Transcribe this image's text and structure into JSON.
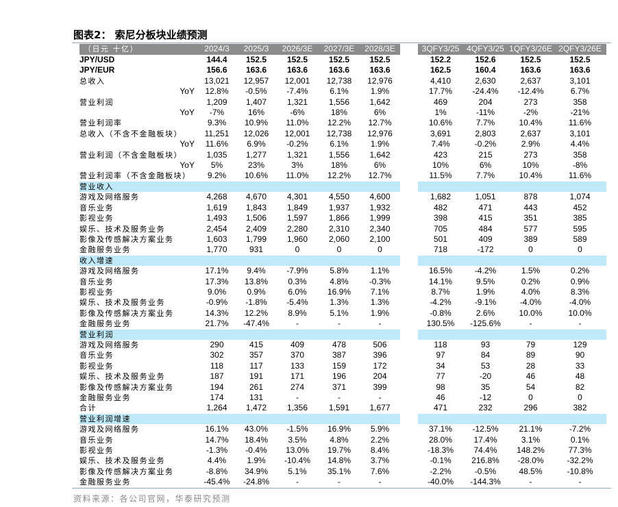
{
  "title": "图表2： 索尼分板块业绩预测",
  "source": "资料来源：各公司官网，华泰研究预测",
  "colors": {
    "header_bg": "#8c8c8c",
    "section_bg": "#bfe9f8",
    "rule": "#8ea3bf"
  },
  "table": {
    "unit_label": "（日元 十亿）",
    "columns": [
      "2024/3",
      "2025/3",
      "2026/3E",
      "2027/3E",
      "2028/3E",
      "3QFY3/25",
      "4QFY3/25",
      "1QFY3/26E",
      "2QFY3/26E"
    ],
    "rows": [
      {
        "type": "bold",
        "label": "JPY/USD",
        "values": [
          "144.4",
          "152.5",
          "152.5",
          "152.5",
          "152.5",
          "152.2",
          "152.6",
          "152.5",
          "152.5"
        ]
      },
      {
        "type": "bold",
        "label": "JPY/EUR",
        "values": [
          "156.6",
          "163.6",
          "163.6",
          "163.6",
          "163.6",
          "162.5",
          "160.4",
          "163.6",
          "163.6"
        ]
      },
      {
        "type": "data",
        "label": "总收入",
        "values": [
          "13,021",
          "12,957",
          "12,001",
          "12,738",
          "12,976",
          "4,410",
          "2,630",
          "2,637",
          "3,101"
        ]
      },
      {
        "type": "yoy",
        "label": "YoY",
        "values": [
          "12.8%",
          "-0.5%",
          "-7.4%",
          "6.1%",
          "1.9%",
          "17.7%",
          "-24.4%",
          "-12.4%",
          "6.7%"
        ]
      },
      {
        "type": "data",
        "label": "营业利润",
        "values": [
          "1,209",
          "1,407",
          "1,321",
          "1,556",
          "1,642",
          "469",
          "204",
          "273",
          "358"
        ]
      },
      {
        "type": "yoy",
        "label": "YoY",
        "values": [
          "-7%",
          "16%",
          "-6%",
          "18%",
          "6%",
          "1%",
          "-11%",
          "-2%",
          "-21%"
        ]
      },
      {
        "type": "data",
        "label": "营业利润率",
        "values": [
          "9.3%",
          "10.9%",
          "11.0%",
          "12.2%",
          "12.7%",
          "10.6%",
          "7.7%",
          "10.4%",
          "11.6%"
        ]
      },
      {
        "type": "data",
        "label": "总收入（不含不金融板块）",
        "values": [
          "11,251",
          "12,026",
          "12,001",
          "12,738",
          "12,976",
          "3,691",
          "2,803",
          "2,637",
          "3,101"
        ]
      },
      {
        "type": "yoy",
        "label": "YoY",
        "values": [
          "11.6%",
          "6.9%",
          "-0.2%",
          "6.1%",
          "1.9%",
          "7.4%",
          "-0.2%",
          "2.9%",
          "4.4%"
        ]
      },
      {
        "type": "data",
        "label": "营业利润（不含金融板块）",
        "values": [
          "1,035",
          "1,277",
          "1,321",
          "1,556",
          "1,642",
          "423",
          "215",
          "273",
          "358"
        ]
      },
      {
        "type": "yoy",
        "label": "YoY",
        "values": [
          "5%",
          "23%",
          "3%",
          "18%",
          "6%",
          "10%",
          "6%",
          "10%",
          "-8%"
        ]
      },
      {
        "type": "data",
        "label": "营业利润率（不含金融板块）",
        "values": [
          "9.2%",
          "10.6%",
          "11.0%",
          "12.2%",
          "12.7%",
          "11.5%",
          "7.7%",
          "10.4%",
          "11.6%"
        ]
      },
      {
        "type": "sec",
        "label": "营业收入",
        "values": []
      },
      {
        "type": "data",
        "label": "游戏及网络服务",
        "values": [
          "4,268",
          "4,670",
          "4,301",
          "4,550",
          "4,600",
          "1,682",
          "1,051",
          "878",
          "1,074"
        ]
      },
      {
        "type": "data",
        "label": "音乐业务",
        "values": [
          "1,619",
          "1,843",
          "1,849",
          "1,937",
          "1,932",
          "482",
          "471",
          "443",
          "452"
        ]
      },
      {
        "type": "data",
        "label": "影视业务",
        "values": [
          "1,493",
          "1,506",
          "1,597",
          "1,866",
          "1,999",
          "398",
          "415",
          "351",
          "385"
        ]
      },
      {
        "type": "data",
        "label": "娱乐、技术及服务业务",
        "values": [
          "2,454",
          "2,409",
          "2,280",
          "2,310",
          "2,340",
          "705",
          "484",
          "577",
          "595"
        ]
      },
      {
        "type": "data",
        "label": "影像及传感解决方案业务",
        "values": [
          "1,603",
          "1,799",
          "1,960",
          "2,060",
          "2,100",
          "501",
          "409",
          "389",
          "589"
        ]
      },
      {
        "type": "data",
        "label": "金融服务业务",
        "values": [
          "1,770",
          "931",
          "0",
          "0",
          "0",
          "718",
          "-172",
          "0",
          "0"
        ]
      },
      {
        "type": "sec",
        "label": "收入增速",
        "values": []
      },
      {
        "type": "data",
        "label": "游戏及网络服务",
        "values": [
          "17.1%",
          "9.4%",
          "-7.9%",
          "5.8%",
          "1.1%",
          "16.5%",
          "-4.2%",
          "1.5%",
          "0.2%"
        ]
      },
      {
        "type": "data",
        "label": "音乐业务",
        "values": [
          "17.3%",
          "13.8%",
          "0.3%",
          "4.8%",
          "-0.3%",
          "14.1%",
          "9.5%",
          "0.2%",
          "0.9%"
        ]
      },
      {
        "type": "data",
        "label": "影视业务",
        "values": [
          "9.0%",
          "0.9%",
          "6.0%",
          "16.9%",
          "7.1%",
          "8.7%",
          "1.9%",
          "4.0%",
          "8.3%"
        ]
      },
      {
        "type": "data",
        "label": "娱乐、技术及服务业务",
        "values": [
          "-0.9%",
          "-1.8%",
          "-5.4%",
          "1.3%",
          "1.3%",
          "-4.2%",
          "-9.1%",
          "-4.0%",
          "-4.0%"
        ]
      },
      {
        "type": "data",
        "label": "影像及传感解决方案业务",
        "values": [
          "14.3%",
          "12.2%",
          "8.9%",
          "5.1%",
          "1.9%",
          "-0.8%",
          "2.6%",
          "10.0%",
          "10.0%"
        ]
      },
      {
        "type": "data",
        "label": "金融服务业务",
        "values": [
          "21.7%",
          "-47.4%",
          "-",
          "-",
          "-",
          "130.5%",
          "-125.6%",
          "-",
          "-"
        ]
      },
      {
        "type": "sec",
        "label": "营业利润",
        "values": []
      },
      {
        "type": "data",
        "label": "游戏及网络服务",
        "values": [
          "290",
          "415",
          "409",
          "478",
          "506",
          "118",
          "93",
          "79",
          "129"
        ]
      },
      {
        "type": "data",
        "label": "音乐业务",
        "values": [
          "302",
          "357",
          "370",
          "387",
          "396",
          "97",
          "84",
          "89",
          "90"
        ]
      },
      {
        "type": "data",
        "label": "影视业务",
        "values": [
          "118",
          "117",
          "133",
          "159",
          "172",
          "34",
          "53",
          "28",
          "33"
        ]
      },
      {
        "type": "data",
        "label": "娱乐、技术及服务业务",
        "values": [
          "187",
          "191",
          "171",
          "196",
          "204",
          "77",
          "-20",
          "46",
          "48"
        ]
      },
      {
        "type": "data",
        "label": "影像及传感解决方案业务",
        "values": [
          "194",
          "261",
          "274",
          "371",
          "399",
          "98",
          "35",
          "54",
          "82"
        ]
      },
      {
        "type": "data",
        "label": "金融服务业务",
        "values": [
          "174",
          "131",
          "-",
          "-",
          "-",
          "46",
          "-12",
          "0",
          "0"
        ]
      },
      {
        "type": "data",
        "label": "合计",
        "values": [
          "1,264",
          "1,472",
          "1,356",
          "1,591",
          "1,677",
          "471",
          "232",
          "296",
          "382"
        ]
      },
      {
        "type": "sec",
        "label": "营业利润增速",
        "values": []
      },
      {
        "type": "data",
        "label": "游戏及网络服务",
        "values": [
          "16.1%",
          "43.0%",
          "-1.5%",
          "16.9%",
          "5.9%",
          "37.1%",
          "-12.5%",
          "21.1%",
          "-7.2%"
        ]
      },
      {
        "type": "data",
        "label": "音乐业务",
        "values": [
          "14.7%",
          "18.4%",
          "3.5%",
          "4.8%",
          "2.2%",
          "28.0%",
          "17.4%",
          "3.1%",
          "0.1%"
        ]
      },
      {
        "type": "data",
        "label": "影视业务",
        "values": [
          "-1.3%",
          "-0.4%",
          "13.0%",
          "19.7%",
          "8.4%",
          "-18.3%",
          "74.4%",
          "148.2%",
          "77.3%"
        ]
      },
      {
        "type": "data",
        "label": "娱乐、技术及服务业务",
        "values": [
          "4.4%",
          "1.9%",
          "-10.4%",
          "14.8%",
          "3.7%",
          "-0.1%",
          "216.8%",
          "-28.0%",
          "-32.2%"
        ]
      },
      {
        "type": "data",
        "label": "影像及传感解决方案业务",
        "values": [
          "-8.8%",
          "34.9%",
          "5.1%",
          "35.1%",
          "7.6%",
          "-2.2%",
          "-0.5%",
          "48.5%",
          "-10.8%"
        ]
      },
      {
        "type": "data",
        "label": "金融服务业务",
        "values": [
          "-45.4%",
          "-24.8%",
          "-",
          "-",
          "-",
          "-40.0%",
          "-144.3%",
          "-",
          "-"
        ]
      }
    ]
  }
}
